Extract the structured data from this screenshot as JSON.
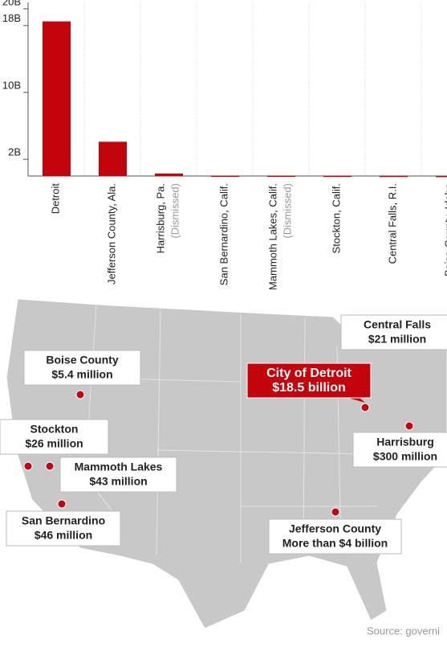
{
  "chart_data": {
    "type": "bar",
    "categories": [
      "Detroit",
      "Jefferson County, Ala.",
      "Harrisburg, Pa.",
      "San Bernardino, Calif.",
      "Mammoth Lakes, Calif.",
      "Stockton, Calif.",
      "Central Falls, R.I.",
      "Boise County, Idaho"
    ],
    "category_notes": [
      null,
      null,
      "(Dismissed)",
      null,
      "(Dismissed)",
      null,
      null,
      null
    ],
    "values": [
      18.5,
      4.1,
      0.3,
      0.046,
      0.043,
      0.026,
      0.021,
      0.0054
    ],
    "color": "#c4040c",
    "ylim": [
      0,
      20
    ],
    "yticks": [
      {
        "value": 2,
        "label": "2B"
      },
      {
        "value": 10,
        "label": "10B"
      },
      {
        "value": 18,
        "label": "18B"
      },
      {
        "value": 20,
        "label": "20B"
      }
    ]
  },
  "map": {
    "callouts": [
      {
        "name": "Boise County",
        "amount": "$5.4 million"
      },
      {
        "name": "Stockton",
        "amount": "$26 million"
      },
      {
        "name": "Mammoth Lakes",
        "amount": "$43 million"
      },
      {
        "name": "San Bernardino",
        "amount": "$46 million"
      },
      {
        "name": "City of Detroit",
        "amount": "$18.5 billion"
      },
      {
        "name": "Central Falls",
        "amount": "$21 million"
      },
      {
        "name": "Harrisburg",
        "amount": "$300 million"
      },
      {
        "name": "Jefferson County",
        "amount": "More than $4 billion"
      }
    ],
    "source": "Source: governi"
  }
}
